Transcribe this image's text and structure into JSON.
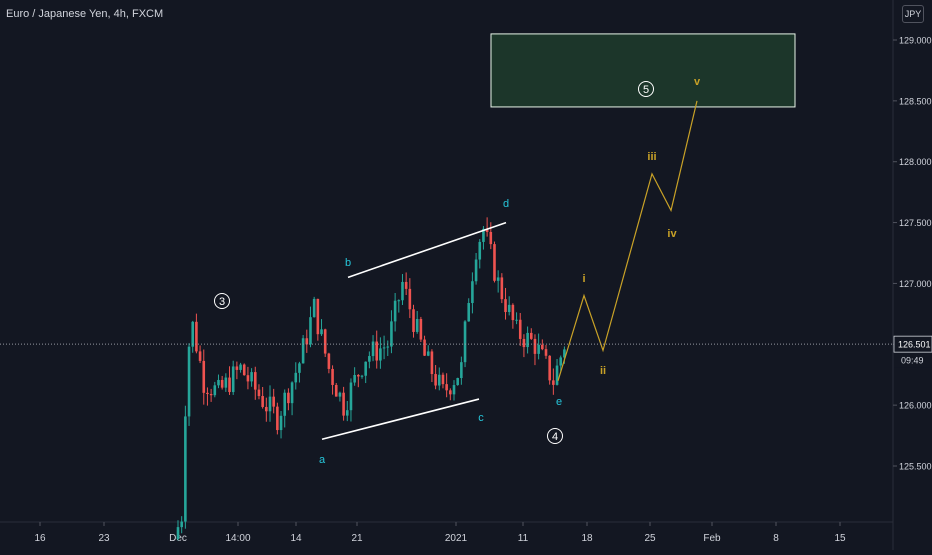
{
  "header": {
    "title": "Euro / Japanese Yen, 4h, FXCM",
    "currency": "JPY"
  },
  "colors": {
    "background": "#131722",
    "up": "#26a69a",
    "down": "#ef5350",
    "wave": "#c9a227",
    "label_cyan": "#26c6da",
    "channel": "#ffffff",
    "target_fill": "#1e3a2b",
    "target_border": "#e8f5e9"
  },
  "price_axis": {
    "ticks": [
      "129.000",
      "128.500",
      "128.000",
      "127.500",
      "127.000",
      "126.500",
      "126.000",
      "125.500"
    ],
    "tick_values": [
      129.0,
      128.5,
      128.0,
      127.5,
      127.0,
      126.5,
      126.0,
      125.5
    ],
    "last_price": "126.501",
    "countdown": "09:49"
  },
  "time_axis": {
    "labels": [
      "16",
      "23",
      "Dec",
      "14:00",
      "14",
      "21",
      "2021",
      "11",
      "18",
      "25",
      "Feb",
      "8",
      "15"
    ]
  },
  "chart_data": {
    "type": "candlestick",
    "ylim": [
      125.0,
      129.3
    ],
    "x_categories": [
      "16",
      "23",
      "Dec",
      "14:00",
      "14",
      "21",
      "2021",
      "11",
      "18",
      "25",
      "Feb",
      "8",
      "15"
    ],
    "price_path": [
      [
        0,
        124.9
      ],
      [
        2,
        125.1
      ],
      [
        3,
        126.0
      ],
      [
        4,
        126.5
      ],
      [
        5,
        126.65
      ],
      [
        8,
        126.2
      ],
      [
        12,
        126.1
      ],
      [
        18,
        126.3
      ],
      [
        25,
        126.0
      ],
      [
        28,
        125.9
      ],
      [
        34,
        126.35
      ],
      [
        38,
        126.8
      ],
      [
        42,
        126.3
      ],
      [
        46,
        126.0
      ],
      [
        52,
        126.4
      ],
      [
        58,
        126.5
      ],
      [
        62,
        127.0
      ],
      [
        64,
        126.8
      ],
      [
        68,
        126.4
      ],
      [
        73,
        126.1
      ],
      [
        78,
        126.3
      ],
      [
        80,
        126.9
      ],
      [
        82,
        127.3
      ],
      [
        84,
        127.45
      ],
      [
        88,
        127.0
      ],
      [
        93,
        126.6
      ],
      [
        98,
        126.5
      ],
      [
        103,
        126.2
      ],
      [
        106,
        126.5
      ]
    ],
    "channel": {
      "upper": [
        [
          "21",
          127.05
        ],
        [
          "11",
          127.5
        ]
      ],
      "lower": [
        [
          "14",
          125.72
        ],
        [
          "2021",
          126.05
        ]
      ]
    },
    "projected_wave": {
      "labels": [
        "i",
        "ii",
        "iii",
        "iv",
        "v"
      ],
      "values": [
        126.9,
        126.45,
        127.9,
        127.6,
        128.5
      ]
    },
    "wave_labels": {
      "abcde": [
        "a",
        "b",
        "c",
        "d",
        "e"
      ],
      "circled": [
        "3",
        "4",
        "5"
      ]
    },
    "target_zone": [
      128.45,
      129.05
    ],
    "last_price": 126.501
  }
}
